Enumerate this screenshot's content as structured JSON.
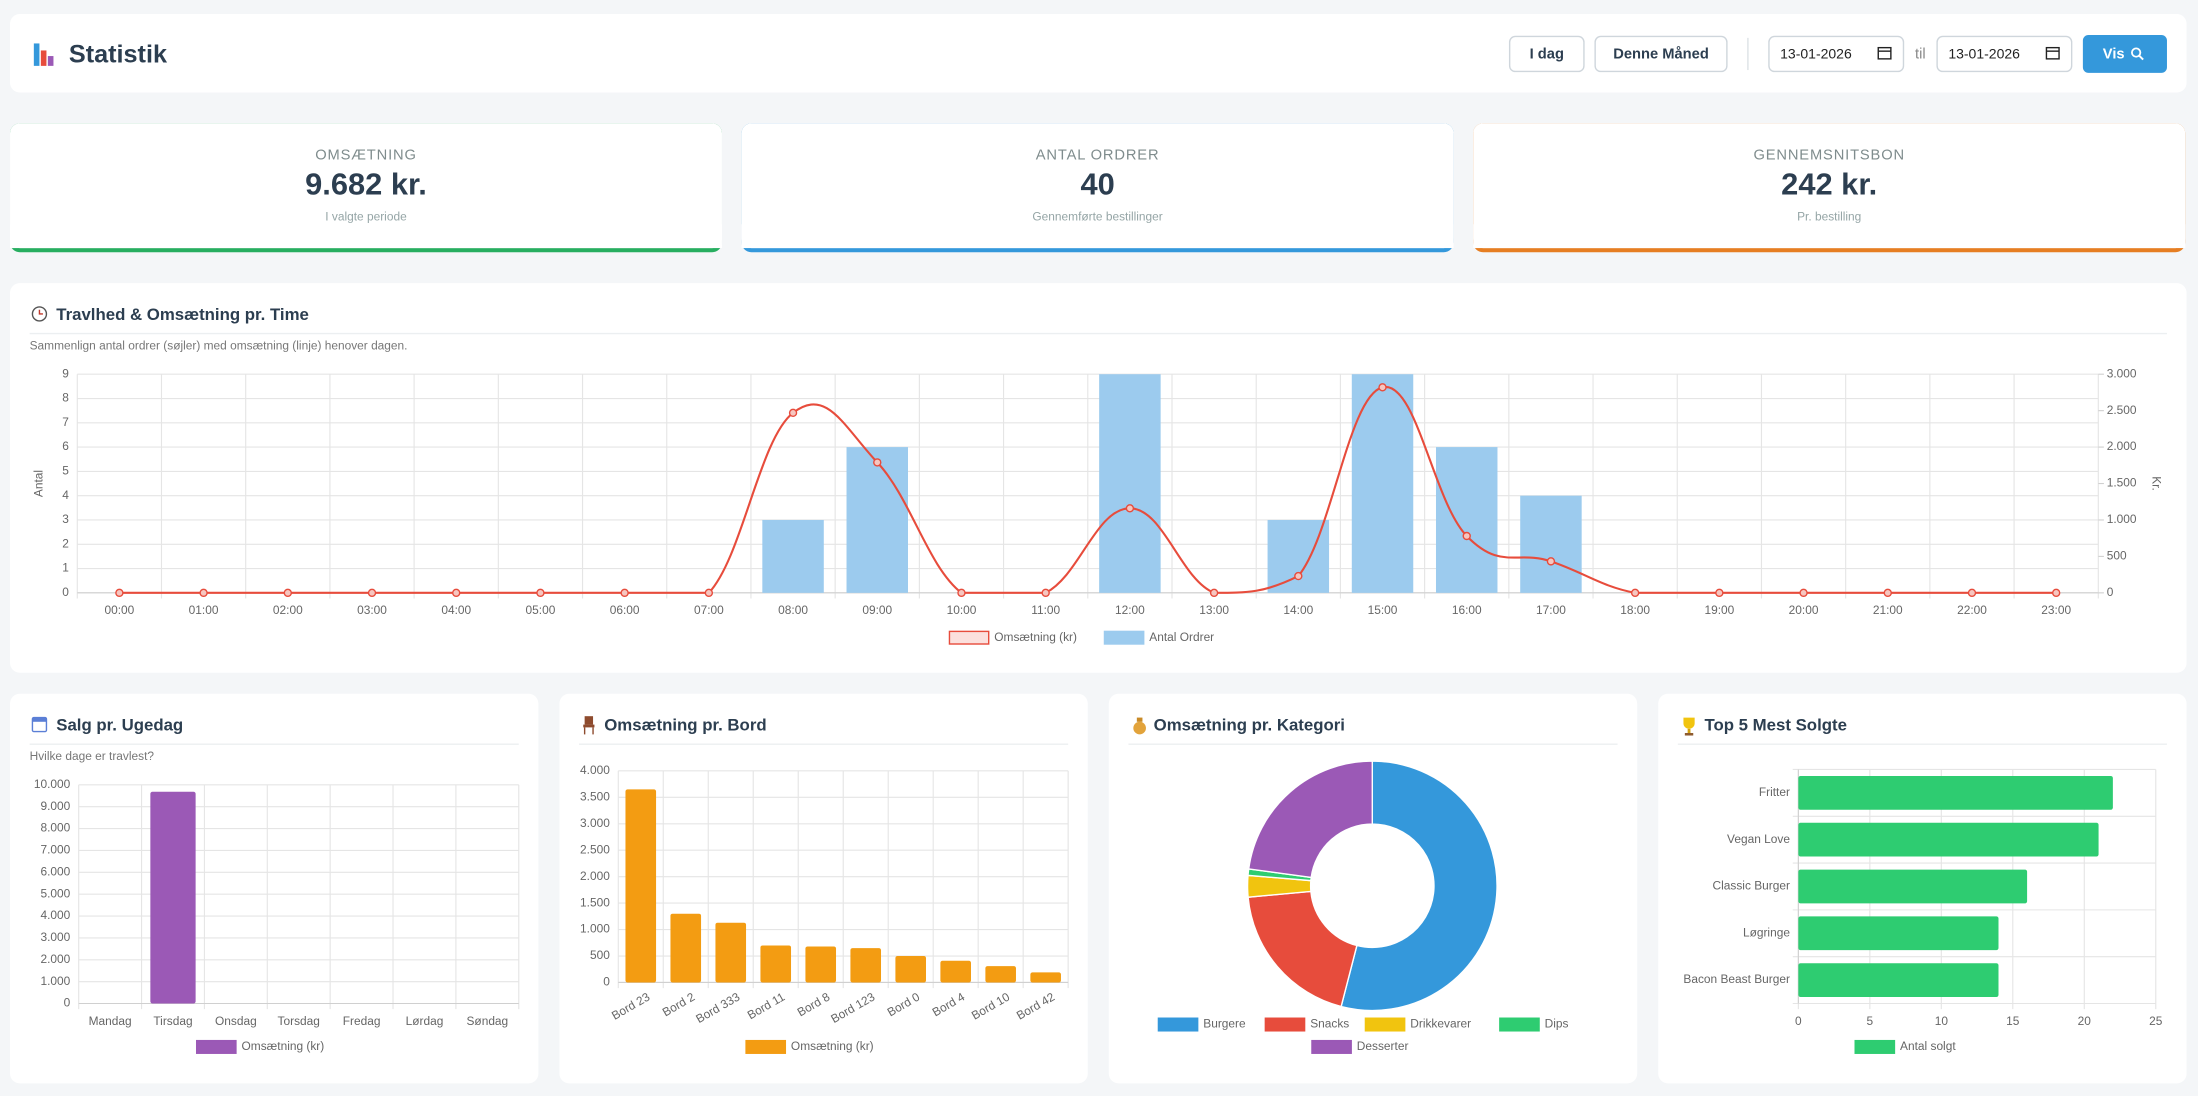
{
  "header": {
    "title": "Statistik",
    "buttons": [
      "I dag",
      "Denne Måned"
    ],
    "date_from": "13-01-2026",
    "separator": "til",
    "date_to": "13-01-2026",
    "submit": "Vis"
  },
  "kpis": [
    {
      "label": "OMSÆTNING",
      "value": "9.682 kr.",
      "note": "I valgte periode"
    },
    {
      "label": "ANTAL ORDRER",
      "value": "40",
      "note": "Gennemførte bestillinger"
    },
    {
      "label": "GENNEMSNITSBON",
      "value": "242 kr.",
      "note": "Pr. bestilling"
    }
  ],
  "chart_data": [
    {
      "type": "bar_line",
      "title": "Travlhed & Omsætning pr. Time",
      "subtitle": "Sammenlign antal ordrer (søjler) med omsætning (linje) henover dagen.",
      "categories": [
        "00:00",
        "01:00",
        "02:00",
        "03:00",
        "04:00",
        "05:00",
        "06:00",
        "07:00",
        "08:00",
        "09:00",
        "10:00",
        "11:00",
        "12:00",
        "13:00",
        "14:00",
        "15:00",
        "16:00",
        "17:00",
        "18:00",
        "19:00",
        "20:00",
        "21:00",
        "22:00",
        "23:00"
      ],
      "series": [
        {
          "name": "Omsætning (kr)",
          "type": "line",
          "axis": "y2",
          "color": "#e74c3c",
          "values": [
            0,
            0,
            0,
            0,
            0,
            0,
            0,
            0,
            2470,
            1790,
            0,
            0,
            1160,
            0,
            230,
            2820,
            780,
            432,
            0,
            0,
            0,
            0,
            0,
            0
          ]
        },
        {
          "name": "Antal Ordrer",
          "type": "bar",
          "color": "#9ccbee",
          "values": [
            0,
            0,
            0,
            0,
            0,
            0,
            0,
            0,
            3,
            6,
            0,
            0,
            9,
            0,
            3,
            9,
            6,
            4,
            0,
            0,
            0,
            0,
            0,
            0
          ]
        }
      ],
      "ylabel": "Antal",
      "y2label": "Kr.",
      "ylim": [
        0,
        9
      ],
      "yticks": [
        0,
        1,
        2,
        3,
        4,
        5,
        6,
        7,
        8,
        9
      ],
      "y2lim": [
        0,
        3000
      ],
      "y2ticks": [
        0,
        500,
        {
          "value": 1000,
          "label": "1.000"
        },
        {
          "value": 1500,
          "label": "1.500"
        },
        {
          "value": 2000,
          "label": "2.000"
        },
        {
          "value": 2500,
          "label": "2.500"
        },
        {
          "value": 3000,
          "label": "3.000"
        }
      ],
      "grid": true,
      "legend": "bottom"
    },
    {
      "type": "bar",
      "title": "Salg pr. Ugedag",
      "subtitle": "Hvilke dage er travlest?",
      "categories": [
        "Mandag",
        "Tirsdag",
        "Onsdag",
        "Torsdag",
        "Fredag",
        "Lørdag",
        "Søndag"
      ],
      "series": [
        {
          "name": "Omsætning (kr)",
          "color": "#9b59b6",
          "values": [
            0,
            9682,
            0,
            0,
            0,
            0,
            0
          ]
        }
      ],
      "ylim": [
        0,
        10000
      ],
      "yticks": [
        0,
        {
          "value": 1000,
          "label": "1.000"
        },
        {
          "value": 2000,
          "label": "2.000"
        },
        {
          "value": 3000,
          "label": "3.000"
        },
        {
          "value": 4000,
          "label": "4.000"
        },
        {
          "value": 5000,
          "label": "5.000"
        },
        {
          "value": 6000,
          "label": "6.000"
        },
        {
          "value": 7000,
          "label": "7.000"
        },
        {
          "value": 8000,
          "label": "8.000"
        },
        {
          "value": 9000,
          "label": "9.000"
        },
        {
          "value": 10000,
          "label": "10.000"
        }
      ],
      "grid": true,
      "legend": "bottom"
    },
    {
      "type": "bar",
      "title": "Omsætning pr. Bord",
      "categories": [
        "Bord 23",
        "Bord 2",
        "Bord 333",
        "Bord 11",
        "Bord 8",
        "Bord 123",
        "Bord 0",
        "Bord 4",
        "Bord 10",
        "Bord 42"
      ],
      "series": [
        {
          "name": "Omsætning (kr)",
          "color": "#f39c12",
          "values": [
            3650,
            1300,
            1130,
            700,
            680,
            650,
            500,
            410,
            310,
            190
          ]
        }
      ],
      "ylim": [
        0,
        4000
      ],
      "yticks": [
        0,
        500,
        {
          "value": 1000,
          "label": "1.000"
        },
        {
          "value": 1500,
          "label": "1.500"
        },
        {
          "value": 2000,
          "label": "2.000"
        },
        {
          "value": 2500,
          "label": "2.500"
        },
        {
          "value": 3000,
          "label": "3.000"
        },
        {
          "value": 3500,
          "label": "3.500"
        },
        {
          "value": 4000,
          "label": "4.000"
        }
      ],
      "grid": true,
      "legend": "bottom",
      "xlabel_rotation": -30
    },
    {
      "type": "doughnut",
      "title": "Omsætning pr. Kategori",
      "categories": [
        "Burgere",
        "Snacks",
        "Drikkevarer",
        "Dips",
        "Desserter"
      ],
      "values": [
        5230,
        1890,
        270,
        80,
        2212
      ],
      "colors": [
        "#3498db",
        "#e74c3c",
        "#f1c40f",
        "#2ecc71",
        "#9b59b6"
      ],
      "legend": "bottom"
    },
    {
      "type": "hbar",
      "title": "Top 5 Mest Solgte",
      "categories": [
        "Fritter",
        "Vegan Love",
        "Classic Burger",
        "Løgringe",
        "Bacon Beast Burger"
      ],
      "series": [
        {
          "name": "Antal solgt",
          "color": "#2ecc71",
          "values": [
            22,
            21,
            16,
            14,
            14
          ]
        }
      ],
      "xlim": [
        0,
        25
      ],
      "xticks": [
        0,
        5,
        10,
        15,
        20,
        25
      ],
      "grid": true,
      "legend": "bottom"
    }
  ]
}
